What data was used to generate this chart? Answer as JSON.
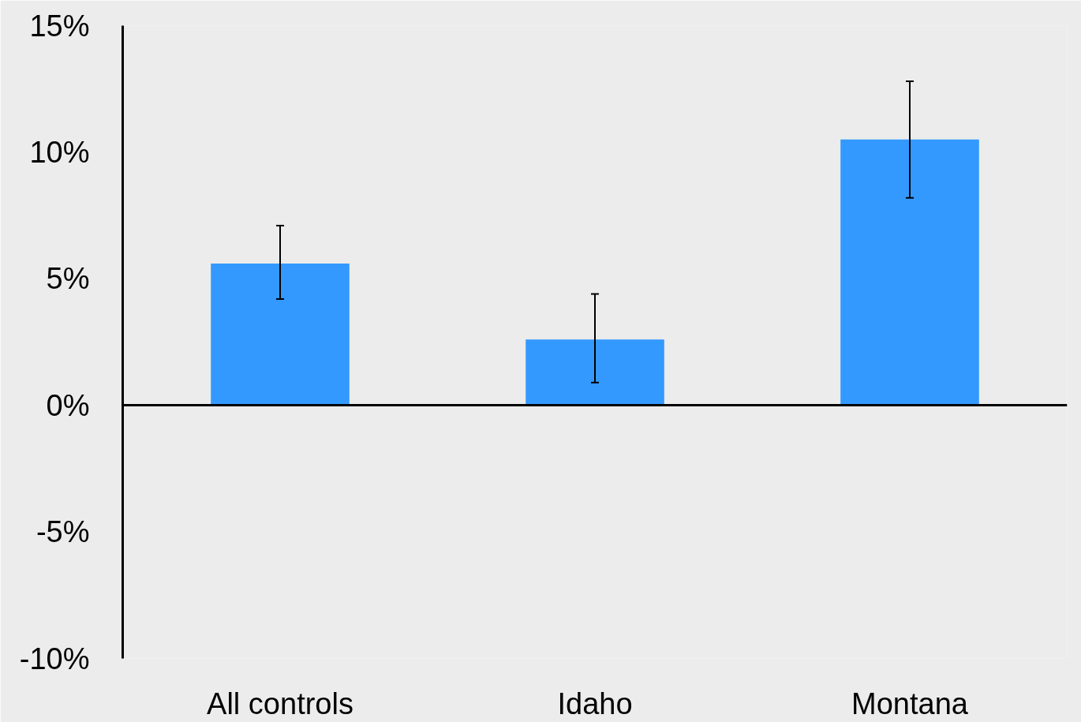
{
  "chart_data": {
    "type": "bar",
    "categories": [
      "All controls",
      "Idaho",
      "Montana"
    ],
    "values": [
      5.6,
      2.6,
      10.5
    ],
    "errors": [
      [
        4.2,
        7.1
      ],
      [
        0.9,
        4.4
      ],
      [
        8.2,
        12.8
      ]
    ],
    "color": "#3399ff",
    "ylim": [
      -10,
      15
    ],
    "yticks": [
      {
        "value": 15,
        "label": "15%"
      },
      {
        "value": 10,
        "label": "10%"
      },
      {
        "value": 5,
        "label": "5%"
      },
      {
        "value": 0,
        "label": "0%"
      },
      {
        "value": -5,
        "label": "-5%"
      },
      {
        "value": -10,
        "label": "-10%"
      }
    ]
  }
}
